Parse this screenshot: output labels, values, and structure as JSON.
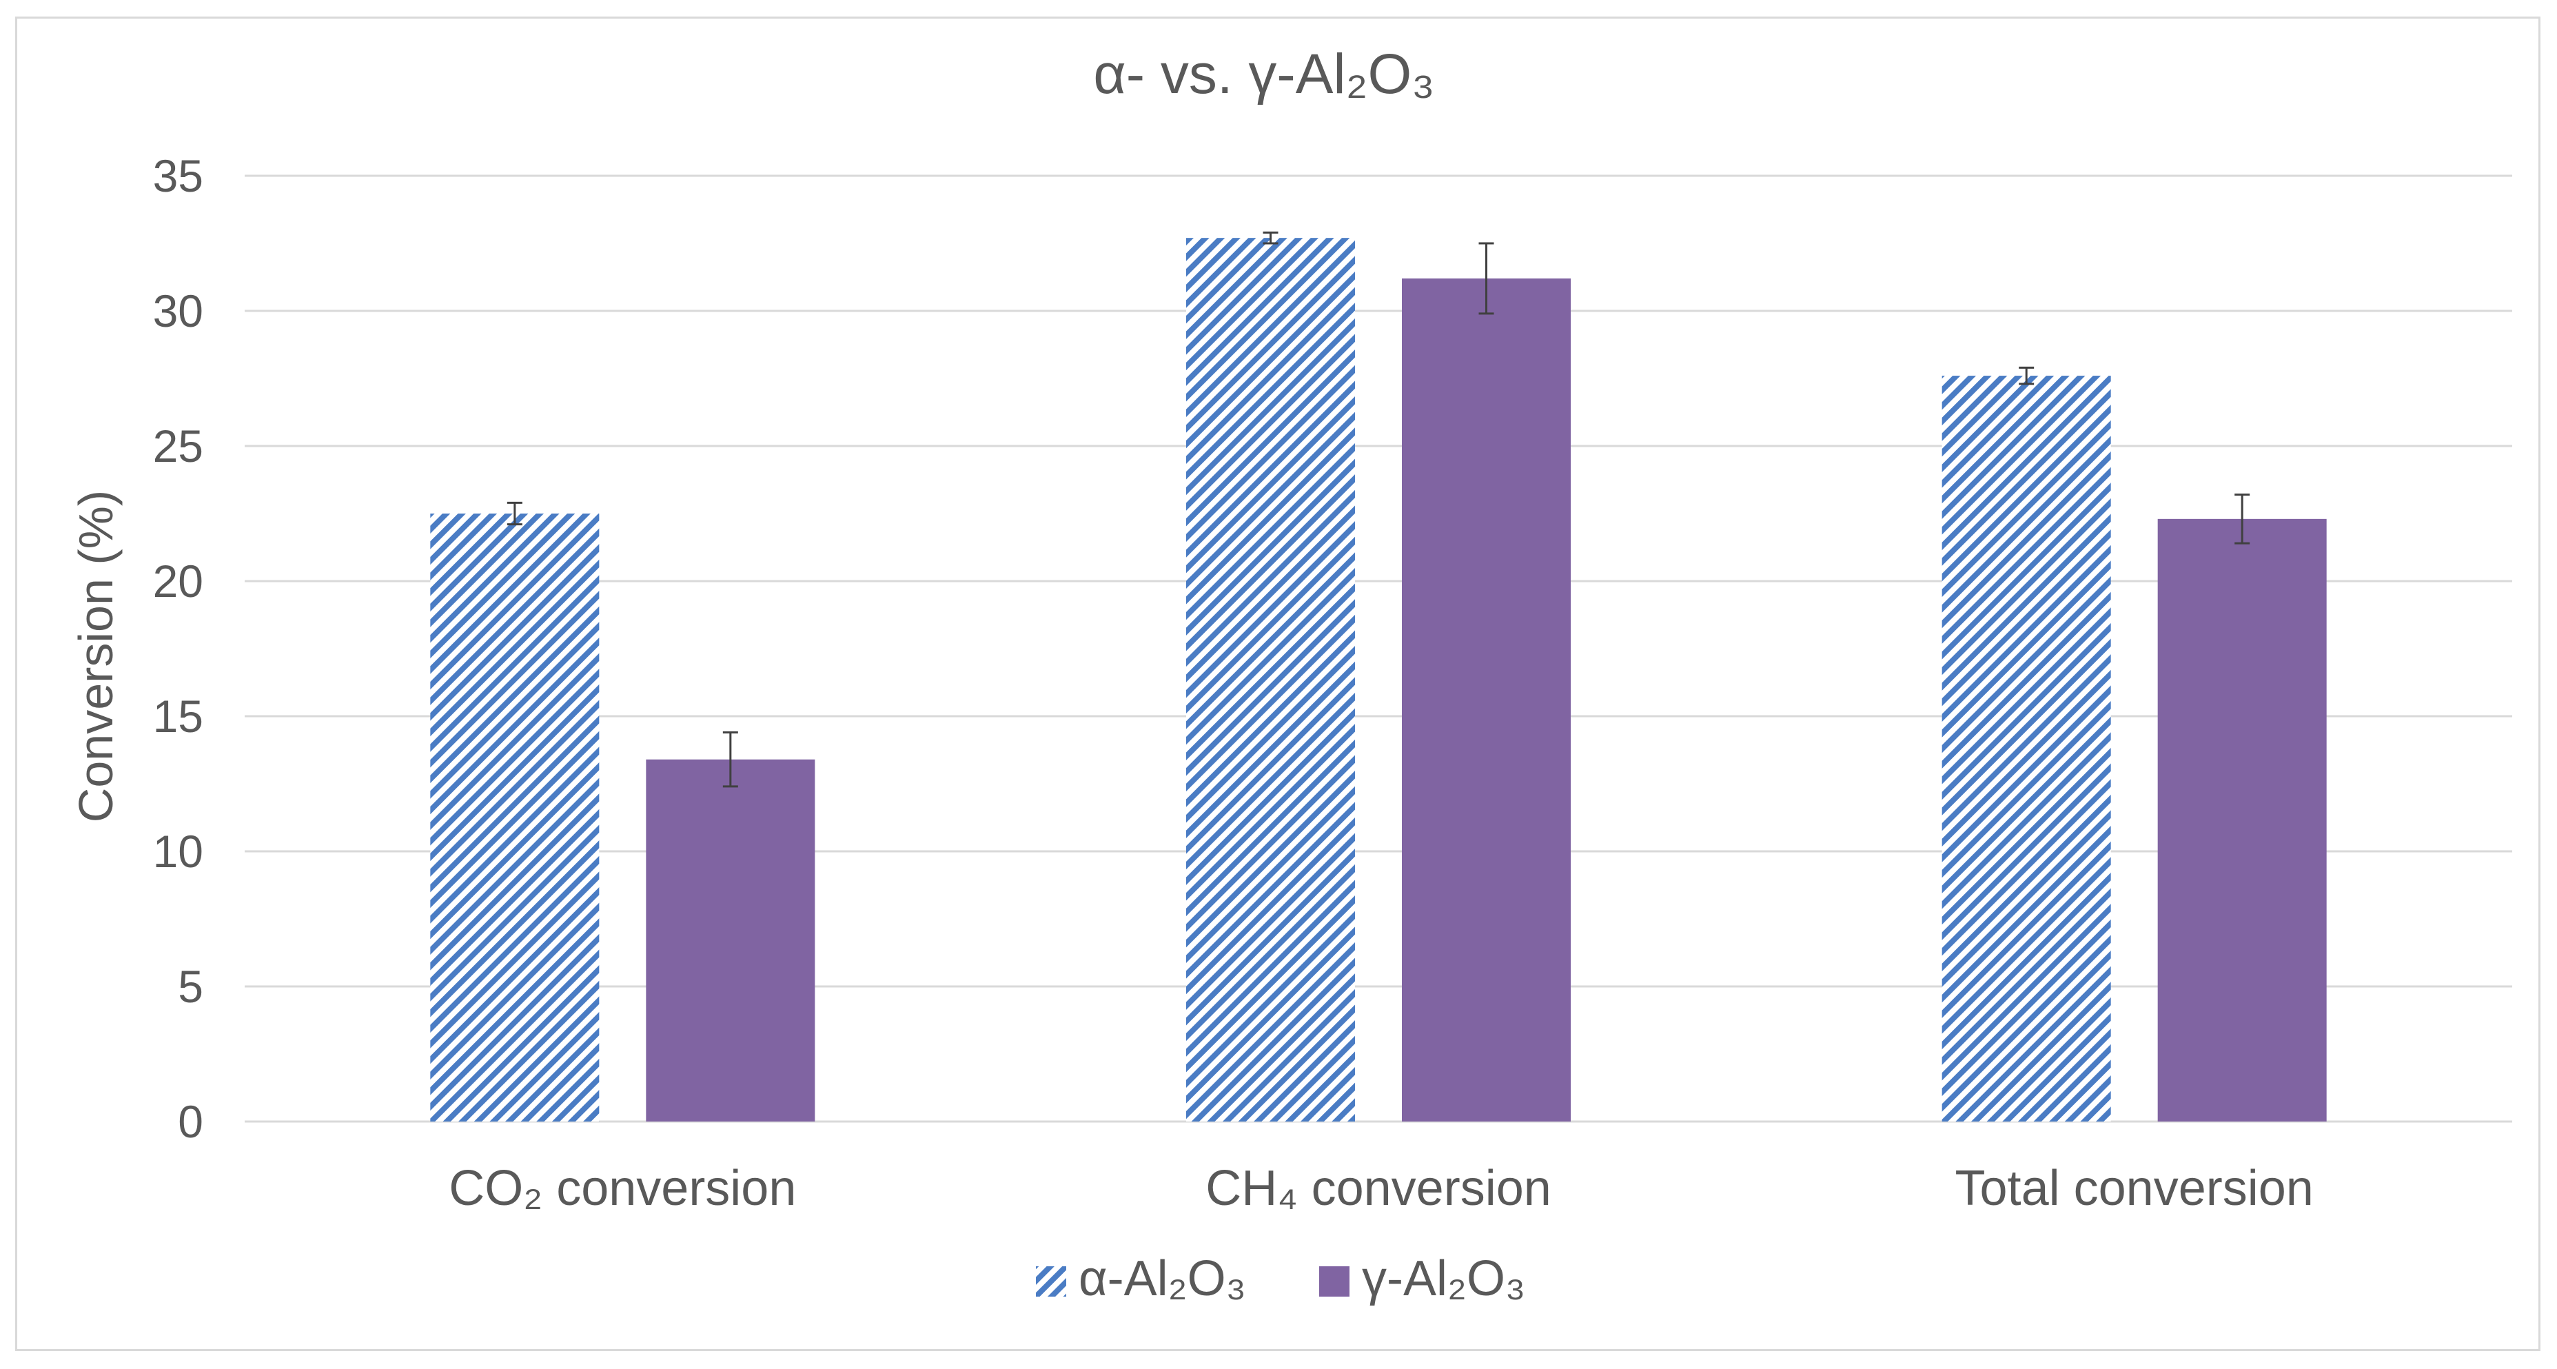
{
  "chart_data": {
    "type": "bar",
    "title": "α- vs. γ-Al₂O₃",
    "xlabel": "",
    "ylabel": "Conversion (%)",
    "ylim": [
      0,
      35
    ],
    "ytick_step": 5,
    "yticks": [
      "0",
      "5",
      "10",
      "15",
      "20",
      "25",
      "30",
      "35"
    ],
    "grid": true,
    "legend_position": "bottom",
    "categories": [
      "CO₂ conversion",
      "CH₄ conversion",
      "Total conversion"
    ],
    "series": [
      {
        "name": "α-Al₂O₃",
        "values": [
          22.5,
          32.7,
          27.6
        ],
        "errors": [
          0.4,
          0.2,
          0.3
        ],
        "color": "#4a7cc4",
        "pattern": "diagonal-stripes"
      },
      {
        "name": "γ-Al₂O₃",
        "values": [
          13.4,
          31.2,
          22.3
        ],
        "errors": [
          1.0,
          1.3,
          0.9
        ],
        "color": "#8064a2",
        "pattern": "solid"
      }
    ]
  },
  "colors": {
    "text": "#595959",
    "gridline": "#d9d9d9",
    "axis": "#d9d9d9",
    "error_bar": "#404040"
  }
}
